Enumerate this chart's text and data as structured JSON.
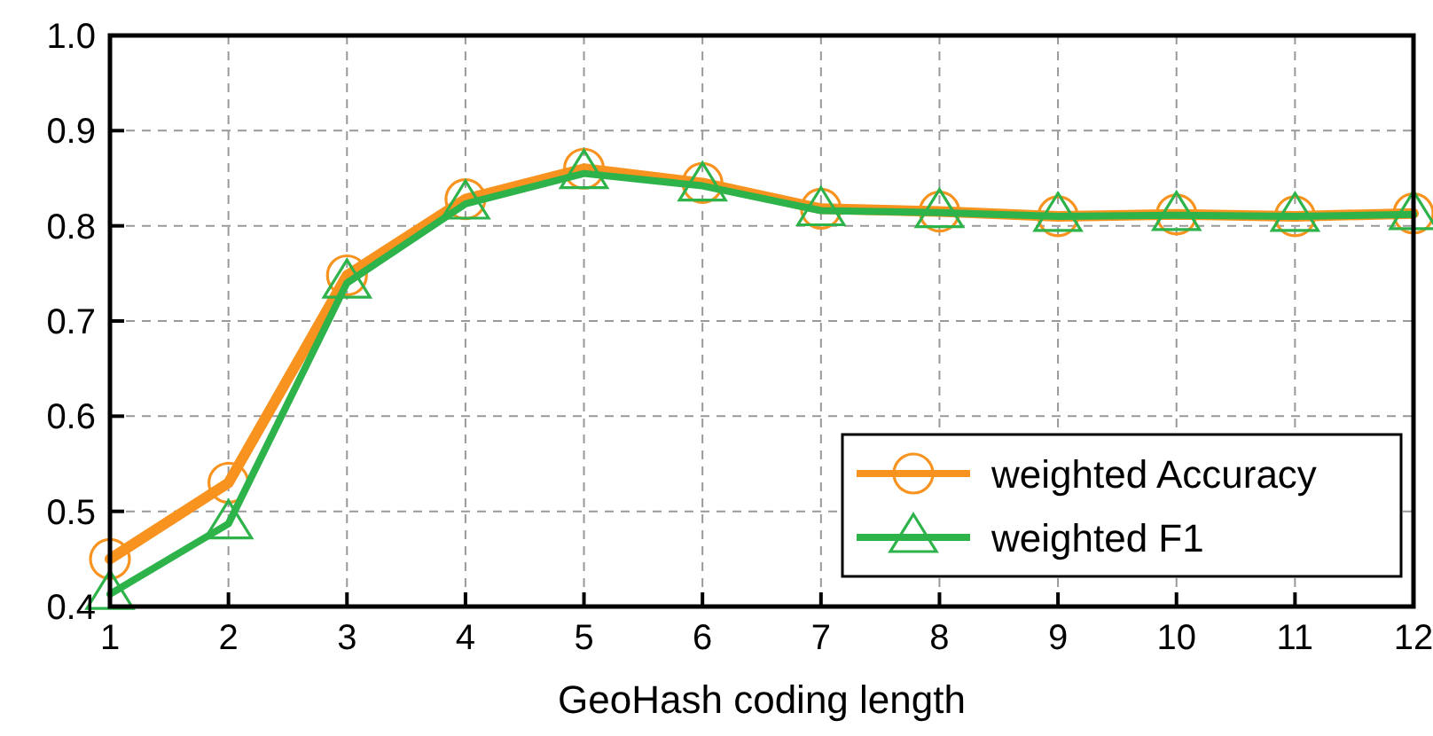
{
  "chart_data": {
    "type": "line",
    "xlabel": "GeoHash coding length",
    "x": [
      1,
      2,
      3,
      4,
      5,
      6,
      7,
      8,
      9,
      10,
      11,
      12
    ],
    "series": [
      {
        "name": "weighted Accuracy",
        "color": "#f7931e",
        "marker": "circle",
        "values": [
          0.45,
          0.53,
          0.748,
          0.828,
          0.86,
          0.845,
          0.818,
          0.815,
          0.81,
          0.812,
          0.81,
          0.813
        ]
      },
      {
        "name": "weighted F1",
        "color": "#2db34a",
        "marker": "triangle",
        "values": [
          0.413,
          0.487,
          0.74,
          0.823,
          0.855,
          0.842,
          0.816,
          0.814,
          0.81,
          0.811,
          0.81,
          0.812
        ]
      }
    ],
    "xlim": [
      1,
      12
    ],
    "xticks": [
      1,
      2,
      3,
      4,
      5,
      6,
      7,
      8,
      9,
      10,
      11,
      12
    ],
    "ylim": [
      0.4,
      1.0
    ],
    "yticks": [
      {
        "value": 0.4,
        "label": "0.4"
      },
      {
        "value": 0.5,
        "label": "0.5"
      },
      {
        "value": 0.6,
        "label": "0.6"
      },
      {
        "value": 0.7,
        "label": "0.7"
      },
      {
        "value": 0.8,
        "label": "0.8"
      },
      {
        "value": 0.9,
        "label": "0.9"
      },
      {
        "value": 1.0,
        "label": "1.0"
      }
    ],
    "grid": true,
    "legend": "bottom right",
    "line_style": "solid"
  }
}
